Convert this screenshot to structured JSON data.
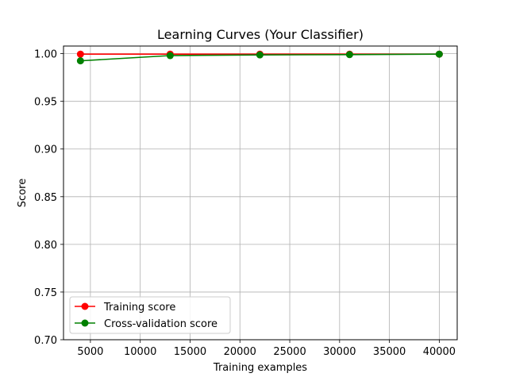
{
  "chart_data": {
    "type": "line",
    "title": "Learning Curves (Your Classifier)",
    "xlabel": "Training examples",
    "ylabel": "Score",
    "xlim": [
      2300,
      41800
    ],
    "ylim": [
      0.7,
      1.008
    ],
    "xticks": [
      5000,
      10000,
      15000,
      20000,
      25000,
      30000,
      35000,
      40000
    ],
    "xtick_labels": [
      "5000",
      "10000",
      "15000",
      "20000",
      "25000",
      "30000",
      "35000",
      "40000"
    ],
    "yticks": [
      0.7,
      0.75,
      0.8,
      0.85,
      0.9,
      0.95,
      1.0
    ],
    "ytick_labels": [
      "0.70",
      "0.75",
      "0.80",
      "0.85",
      "0.90",
      "0.95",
      "1.00"
    ],
    "grid": true,
    "legend_position": "lower-left",
    "x": [
      4000,
      13000,
      22000,
      31000,
      40000
    ],
    "series": [
      {
        "name": "Training score",
        "color": "#ff0000",
        "marker": "circle",
        "values": [
          0.9995,
          0.9995,
          0.9995,
          0.9995,
          0.9995
        ]
      },
      {
        "name": "Cross-validation score",
        "color": "#008000",
        "marker": "circle",
        "values": [
          0.9925,
          0.998,
          0.9987,
          0.999,
          0.9995
        ]
      }
    ]
  }
}
